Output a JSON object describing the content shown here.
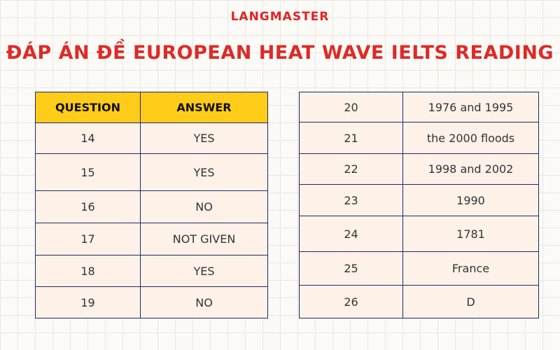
{
  "brand": "LANGMASTER",
  "title": "ĐÁP ÁN ĐỀ EUROPEAN HEAT WAVE IELTS READING",
  "left_table": {
    "headers": [
      "QUESTION",
      "ANSWER"
    ],
    "rows": [
      [
        "14",
        "YES"
      ],
      [
        "15",
        "YES"
      ],
      [
        "16",
        "NO"
      ],
      [
        "17",
        "NOT GIVEN"
      ],
      [
        "18",
        "YES"
      ],
      [
        "19",
        "NO"
      ]
    ]
  },
  "right_table": {
    "rows": [
      [
        "20",
        "1976 and 1995"
      ],
      [
        "21",
        "the 2000 floods"
      ],
      [
        "22",
        "1998 and 2002"
      ],
      [
        "23",
        "1990"
      ],
      [
        "24",
        "1781"
      ],
      [
        "25",
        "France"
      ],
      [
        "26",
        "D"
      ]
    ]
  }
}
